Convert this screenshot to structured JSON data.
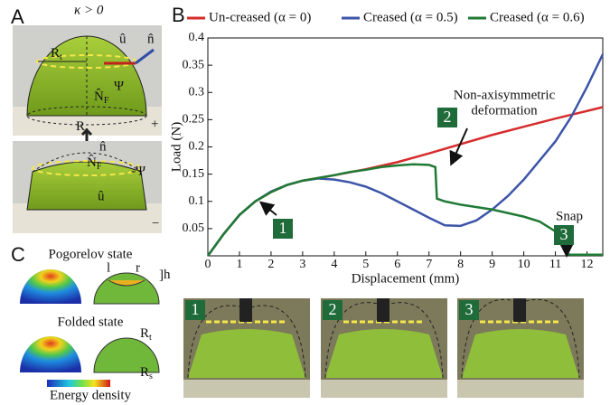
{
  "panel_labels": [
    "A",
    "B",
    "C"
  ],
  "panel_a": {
    "kappa": "κ > 0",
    "r_top": "R",
    "r_top_sub": "t",
    "psi": "Ψ",
    "normal_force": "N̂",
    "normal_force_sub": "F",
    "u_hat": "û",
    "n_hat": "n̂",
    "r_bottom": "R",
    "r_bottom_sub": "s",
    "plus": "+",
    "n_hat_2": "n̂",
    "normal_force_2": "N̂",
    "normal_force_2_sub": "F",
    "minus_psi": "-Ψ",
    "u_hat_2": "û",
    "minus": "−"
  },
  "panel_c": {
    "pogorelov": "Pogorelov state",
    "l": "l",
    "r": "r",
    "h": "h",
    "folded": "Folded state",
    "rt": "R",
    "rt_sub": "t",
    "rs": "R",
    "rs_sub": "s",
    "energy": "Energy density"
  },
  "photos": [
    "1",
    "2",
    "3"
  ],
  "chart_data": {
    "type": "line",
    "xlabel": "Displacement (mm)",
    "ylabel": "Load (N)",
    "xlim": [
      0,
      12.5
    ],
    "xticks": [
      0,
      1,
      2,
      3,
      4,
      5,
      6,
      7,
      8,
      9,
      10,
      11,
      12
    ],
    "ylim": [
      0,
      0.4
    ],
    "yticks": [
      0.05,
      0.1,
      0.15,
      0.2,
      0.25,
      0.3,
      0.35,
      0.4
    ],
    "series": [
      {
        "name": "Un-creased (α = 0)",
        "color": "#d62c2c",
        "x": [
          0,
          0.5,
          1,
          1.5,
          2,
          2.5,
          3,
          3.5,
          4,
          5,
          6,
          7,
          8,
          9,
          10,
          11,
          12,
          12.5
        ],
        "values": [
          0,
          0.04,
          0.075,
          0.1,
          0.117,
          0.13,
          0.138,
          0.143,
          0.148,
          0.159,
          0.172,
          0.188,
          0.205,
          0.222,
          0.237,
          0.252,
          0.266,
          0.273
        ]
      },
      {
        "name": "Creased (α = 0.5)",
        "color": "#3d55a8",
        "x": [
          0,
          0.5,
          1,
          1.5,
          2,
          2.5,
          3,
          3.5,
          4,
          4.5,
          5,
          5.5,
          6,
          6.5,
          7,
          7.5,
          8,
          8.5,
          9,
          9.5,
          10,
          10.5,
          11,
          11.5,
          12,
          12.5
        ],
        "values": [
          0,
          0.04,
          0.075,
          0.1,
          0.118,
          0.13,
          0.138,
          0.142,
          0.14,
          0.135,
          0.127,
          0.115,
          0.1,
          0.085,
          0.07,
          0.056,
          0.055,
          0.065,
          0.085,
          0.11,
          0.14,
          0.175,
          0.21,
          0.255,
          0.31,
          0.37
        ]
      },
      {
        "name": "Creased (α = 0.6)",
        "color": "#1f7a35",
        "x": [
          0,
          0.5,
          1,
          1.5,
          2,
          2.5,
          3,
          3.5,
          4,
          4.5,
          5,
          5.5,
          6,
          6.5,
          7,
          7.2,
          7.25,
          7.5,
          8,
          9,
          10,
          10.5,
          11,
          11.3,
          11.4,
          11.5,
          12.5
        ],
        "values": [
          0,
          0.04,
          0.075,
          0.1,
          0.117,
          0.13,
          0.138,
          0.143,
          0.148,
          0.154,
          0.158,
          0.163,
          0.166,
          0.168,
          0.167,
          0.163,
          0.105,
          0.1,
          0.094,
          0.085,
          0.072,
          0.063,
          0.045,
          0.02,
          0.003,
          0.002,
          0.002
        ]
      }
    ],
    "annotations": [
      "Non-axisymmetric",
      "deformation",
      "Snap"
    ],
    "markers": [
      "1",
      "2",
      "3"
    ]
  }
}
